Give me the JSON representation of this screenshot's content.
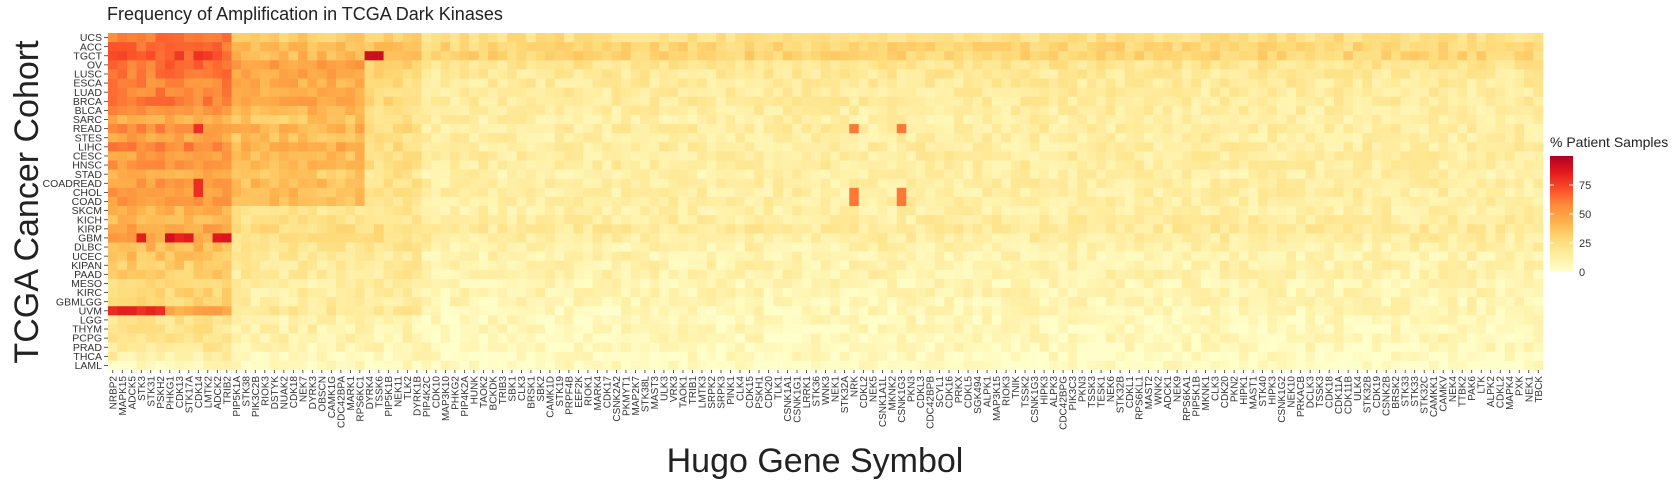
{
  "chart_data": {
    "type": "heatmap",
    "title": "Frequency of Amplification in TCGA Dark Kinases",
    "xlabel": "Hugo Gene Symbol",
    "ylabel": "TCGA Cancer Cohort",
    "legend": {
      "title": "% Patient Samples",
      "ticks": [
        0,
        25,
        50,
        75
      ],
      "range": [
        0,
        100
      ],
      "placement": "right",
      "colors": [
        "#ffffcc",
        "#ffeda0",
        "#fed976",
        "#feb24c",
        "#fd8d3c",
        "#fc4e2a",
        "#e31a1c",
        "#b10026"
      ]
    },
    "grid": false,
    "y_categories": [
      "UCS",
      "ACC",
      "TGCT",
      "OV",
      "LUSC",
      "ESCA",
      "LUAD",
      "BRCA",
      "BLCA",
      "SARC",
      "READ",
      "STES",
      "LIHC",
      "CESC",
      "HNSC",
      "STAD",
      "COADREAD",
      "CHOL",
      "COAD",
      "SKCM",
      "KICH",
      "KIRP",
      "GBM",
      "DLBC",
      "UCEC",
      "KIPAN",
      "PAAD",
      "MESO",
      "KIRC",
      "GBMLGG",
      "UVM",
      "LGG",
      "THYM",
      "PCPG",
      "PRAD",
      "THCA",
      "LAML"
    ],
    "x_categories": [
      "NRBP2",
      "MAPK15",
      "ADCK5",
      "STK3",
      "STK31",
      "PSKH2",
      "PHKG1",
      "CDK13",
      "STK17A",
      "CDK14",
      "LMTK2",
      "ADCK2",
      "TRIB2",
      "PIP5K1A",
      "STK38",
      "PIK3C2B",
      "RIOK3",
      "DSTYK",
      "NUAK2",
      "CDK18",
      "NEK7",
      "DYRK3",
      "OBSCN",
      "CAMK1G",
      "CDC42BPA",
      "MARK1",
      "RPS6KC1",
      "DYRK4",
      "TSSK6",
      "PIP5K1B",
      "NEK11",
      "TLK2",
      "DYRK1B",
      "PIP4K2C",
      "CDK10",
      "MAP3K10",
      "PHKG2",
      "PIP4K2A",
      "HUNK",
      "TAOK2",
      "BCKDK",
      "TRIB3",
      "SBK1",
      "CLK3",
      "BRSK1",
      "SBK2",
      "CAMK1D",
      "STK19",
      "PRPF4B",
      "EEF2K",
      "RIOK1",
      "MARK4",
      "CDK17",
      "CSNK2A2",
      "PKMYT1",
      "MAP2K7",
      "STK38L",
      "MAST3",
      "ULK3",
      "VRK3",
      "TAOK1",
      "TRIB1",
      "LMTK3",
      "SRPK2",
      "SRPK3",
      "PINK1",
      "CLK4",
      "CDK15",
      "PSKH1",
      "CDK20",
      "TLK1",
      "CSNK1A1",
      "CSNK1G1",
      "LRRK1",
      "STK36",
      "WNK3",
      "NEK1",
      "STK32A",
      "NRK",
      "CDKL2",
      "NEK5",
      "CSNK1A1L",
      "MKNK2",
      "CSNK1G3",
      "PKN3",
      "CDKL3",
      "CDC42BPB",
      "SCYL1",
      "CDK16",
      "PRKX",
      "CDKL5",
      "SGK494",
      "ALPK1",
      "MAP3K15",
      "RIOK3",
      "TNIK",
      "TSSK2",
      "CSNK1G3",
      "HIPK3",
      "ALPK3",
      "CDC42BPG",
      "PIK3C3",
      "PKN3",
      "TSSK3",
      "TESK1",
      "NEK6",
      "STK32B",
      "CDKL1",
      "RPS6KL1",
      "MAST2",
      "WNK2",
      "ADCK1",
      "NEK9",
      "RPS6KA1",
      "PIP5K1B",
      "MKNK1",
      "CLK3",
      "CDK20",
      "PKN2",
      "HIPK1",
      "MAST1",
      "STK40",
      "HIPK3",
      "CSNK1G2",
      "NEK10",
      "PRKACB",
      "DCLK3",
      "TSSK3",
      "CDK18",
      "CDK11A",
      "CDK11B",
      "ULK4",
      "STK32B",
      "CDK19",
      "CSNK2B",
      "BRSK2",
      "STK33",
      "STK33",
      "STK32C",
      "CAMKK1",
      "CAMKV",
      "NEK4",
      "TTBK2",
      "PAK6",
      "LTK",
      "ALPK2",
      "CDKL2",
      "MAPK4",
      "PXK",
      "NEK1",
      "TBCK"
    ]
  }
}
